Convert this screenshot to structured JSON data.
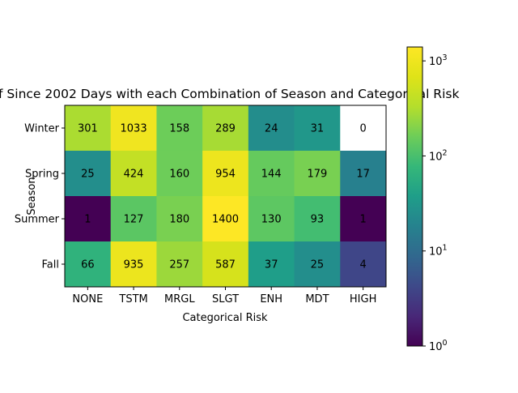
{
  "chart_data": {
    "type": "heatmap",
    "title": "of Since 2002 Days with each Combination of Season and Categorical Risk",
    "xlabel": "Categorical Risk",
    "ylabel": "Season",
    "x_categories": [
      "NONE",
      "TSTM",
      "MRGL",
      "SLGT",
      "ENH",
      "MDT",
      "HIGH"
    ],
    "y_categories": [
      "Winter",
      "Spring",
      "Summer",
      "Fall"
    ],
    "values": [
      [
        301,
        1033,
        158,
        289,
        24,
        31,
        0
      ],
      [
        25,
        424,
        160,
        954,
        144,
        179,
        17
      ],
      [
        1,
        127,
        180,
        1400,
        130,
        93,
        1
      ],
      [
        66,
        935,
        257,
        587,
        37,
        25,
        4
      ]
    ],
    "colorscale": {
      "name": "viridis",
      "scale": "log",
      "range": [
        1,
        1400
      ],
      "masked_color": "#ffffff"
    },
    "colorbar": {
      "ticks": [
        {
          "base": "10",
          "exp": "0",
          "value": 1
        },
        {
          "base": "10",
          "exp": "1",
          "value": 10
        },
        {
          "base": "10",
          "exp": "2",
          "value": 100
        },
        {
          "base": "10",
          "exp": "3",
          "value": 1000
        }
      ]
    },
    "grid": false
  }
}
